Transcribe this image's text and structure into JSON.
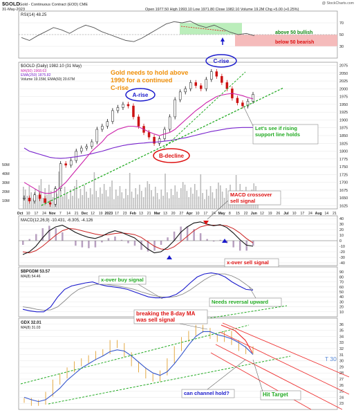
{
  "header": {
    "symbol": "$GOLD",
    "name": "Gold - Continuous Contract (EOD) CME",
    "date": "31-May-2023",
    "ohlc": "Open 1977.50  High 1993.10  Low 1971.80  Close 1982.10  Volume 19.2M  Chg +5.00 (+0.25%)",
    "watermark": "@ StockCharts.com"
  },
  "colors": {
    "price": "#111111",
    "ma50": "#cc22aa",
    "ema250": "#7722cc",
    "volume": "#bbbbbb",
    "trend": "#22aa22",
    "channel": "#ee3333",
    "callout_orange": "#f0900a",
    "callout_red": "#dd1111",
    "callout_green": "#22aa22",
    "callout_blue": "#1a1acc",
    "rsi_line": "#555555",
    "rsi_bull": "#b4ecb4",
    "rsi_bear": "#f4b4b4"
  },
  "chart_data": [
    {
      "type": "line",
      "title": "RSI(14) 48.25",
      "ylim": [
        10,
        90
      ],
      "ticks": [
        "70",
        "50",
        "30"
      ],
      "zones": [
        {
          "label": "above 50 bullish",
          "from": 50,
          "to": 70
        },
        {
          "label": "below 50 bearish",
          "from": 30,
          "to": 50
        }
      ],
      "series": [
        {
          "name": "RSI(14)",
          "values": [
            45,
            40,
            48,
            55,
            62,
            58,
            52,
            60,
            66,
            62,
            55,
            50,
            45,
            40,
            38,
            44,
            52,
            60,
            68,
            72,
            70,
            73,
            66,
            62,
            66,
            60,
            54,
            50,
            52,
            48
          ]
        }
      ]
    },
    {
      "type": "line",
      "title": "$GOLD (Daily) 1982.10 (31 May)",
      "legend": [
        "MA(50) 1968.63",
        "EMA(250) 1875.82",
        "Volume 19.15M, EMA(60) 20.67M"
      ],
      "ylim": [
        1615,
        2085
      ],
      "ticks": [
        "2075",
        "2050",
        "2025",
        "2000",
        "1975",
        "1950",
        "1925",
        "1900",
        "1875",
        "1850",
        "1825",
        "1800",
        "1775",
        "1750",
        "1725",
        "1700",
        "1675",
        "1650",
        "1625"
      ],
      "volume_ticks": [
        "50M",
        "40M",
        "30M",
        "20M",
        "10M"
      ],
      "x_ticks": [
        "Oct",
        "10",
        "17",
        "24",
        "Nov",
        "7",
        "14",
        "21",
        "Dec",
        "12",
        "19",
        "2023",
        "17",
        "23",
        "Feb",
        "13",
        "21",
        "Mar",
        "13",
        "20",
        "27",
        "Apr",
        "10",
        "17",
        "24",
        "May",
        "8",
        "15",
        "22",
        "Jun",
        "12",
        "19",
        "26",
        "Jul",
        "10",
        "17",
        "24",
        "Aug",
        "14",
        "21"
      ],
      "series": [
        {
          "name": "Gold",
          "values": [
            1650,
            1640,
            1660,
            1648,
            1635,
            1630,
            1680,
            1760,
            1755,
            1770,
            1800,
            1810,
            1815,
            1830,
            1870,
            1880,
            1895,
            1930,
            1940,
            1950,
            1945,
            1910,
            1880,
            1860,
            1845,
            1825,
            1840,
            1870,
            1910,
            1965,
            1990,
            2000,
            2020,
            2010,
            2000,
            2030,
            2055,
            2040,
            2020,
            2000,
            1970,
            1955,
            1945,
            1960,
            1982
          ]
        },
        {
          "name": "MA(50)",
          "values": [
            1700,
            1690,
            1680,
            1670,
            1665,
            1665,
            1670,
            1685,
            1700,
            1720,
            1740,
            1760,
            1780,
            1800,
            1815,
            1830,
            1850,
            1860,
            1870,
            1875,
            1880,
            1880,
            1878,
            1870,
            1862,
            1855,
            1850,
            1855,
            1860,
            1870,
            1885,
            1900,
            1915,
            1930,
            1942,
            1955,
            1965,
            1975,
            1980,
            1983,
            1985,
            1982,
            1978,
            1972,
            1968
          ]
        },
        {
          "name": "EMA(250)",
          "values": [
            1810,
            1800,
            1795,
            1790,
            1785,
            1780,
            1778,
            1777,
            1778,
            1780,
            1782,
            1785,
            1788,
            1792,
            1796,
            1800,
            1805,
            1810,
            1814,
            1818,
            1821,
            1823,
            1825,
            1826,
            1828,
            1829,
            1830,
            1832,
            1834,
            1837,
            1840,
            1843,
            1847,
            1851,
            1855,
            1859,
            1863,
            1866,
            1869,
            1872,
            1874,
            1875,
            1876,
            1876,
            1876
          ]
        }
      ],
      "annotations": [
        "Gold needs to hold above 1990 for a continued C-rise",
        "A-rise",
        "C-rise",
        "B-decline",
        "Let's see if rising support line holds"
      ]
    },
    {
      "type": "line",
      "title": "MACD(12,26,9) -10.431, -6.305, -4.126",
      "ylim": [
        -45,
        45
      ],
      "ticks": [
        "40",
        "30",
        "20",
        "10",
        "0",
        "-10",
        "-20",
        "-30",
        "-40"
      ],
      "series": [
        {
          "name": "MACD",
          "values": [
            -25,
            -20,
            -10,
            5,
            18,
            25,
            28,
            22,
            15,
            10,
            6,
            4,
            8,
            14,
            18,
            15,
            10,
            5,
            -5,
            -15,
            -22,
            -20,
            -12,
            0,
            15,
            25,
            32,
            34,
            30,
            27,
            29,
            24,
            14,
            2,
            -8,
            -10
          ]
        },
        {
          "name": "Signal",
          "values": [
            -20,
            -22,
            -18,
            -10,
            0,
            10,
            18,
            22,
            21,
            18,
            15,
            12,
            10,
            11,
            13,
            14,
            13,
            11,
            6,
            -2,
            -10,
            -15,
            -16,
            -11,
            -2,
            8,
            18,
            25,
            28,
            28,
            28,
            27,
            22,
            14,
            4,
            -4
          ]
        }
      ],
      "annotations": [
        "MACD crossover sell signal",
        "x-over sell signal"
      ]
    },
    {
      "type": "line",
      "title": "$BPGDM 53.57",
      "legend": [
        "MA(8) 54.46"
      ],
      "ylim": [
        0,
        100
      ],
      "ticks": [
        "90",
        "80",
        "70",
        "60",
        "50",
        "40",
        "30",
        "20",
        "10"
      ],
      "series": [
        {
          "name": "$BPGDM",
          "values": [
            15,
            12,
            10,
            10,
            20,
            40,
            55,
            62,
            65,
            68,
            70,
            65,
            62,
            60,
            58,
            55,
            50,
            45,
            40,
            38,
            38,
            40,
            45,
            55,
            68,
            80,
            86,
            88,
            86,
            80,
            70,
            62,
            55,
            53.57
          ]
        },
        {
          "name": "MA(8)",
          "values": [
            20,
            18,
            15,
            13,
            14,
            20,
            32,
            45,
            55,
            60,
            64,
            66,
            65,
            63,
            61,
            58,
            55,
            50,
            46,
            42,
            40,
            39,
            41,
            46,
            54,
            64,
            74,
            82,
            86,
            86,
            82,
            75,
            65,
            54.46
          ]
        }
      ],
      "annotations": [
        "x-over buy signal",
        "Needs reversal upward"
      ]
    },
    {
      "type": "line",
      "title": "GDX 32.01",
      "legend": [
        "MA(8) 31.03"
      ],
      "ylim": [
        22,
        37
      ],
      "ticks": [
        "36",
        "35",
        "34",
        "33",
        "32",
        "31",
        "30",
        "29",
        "28",
        "27",
        "26",
        "25",
        "24",
        "23"
      ],
      "series": [
        {
          "name": "GDX",
          "values": [
            23.5,
            23.0,
            23.2,
            24.5,
            26.5,
            27.5,
            28.5,
            29.5,
            30.0,
            30.5,
            31.2,
            31.5,
            33.0,
            32.5,
            31.0,
            29.5,
            28.5,
            27.5,
            27.0,
            28.0,
            30.0,
            32.0,
            33.5,
            34.5,
            35.5,
            35.0,
            34.0,
            33.5,
            34.5,
            33.0,
            32.0,
            31.5,
            32.0
          ]
        },
        {
          "name": "MA(8)",
          "values": [
            24.0,
            23.6,
            23.3,
            23.6,
            24.5,
            25.5,
            26.8,
            27.8,
            28.8,
            29.5,
            30.2,
            30.8,
            31.5,
            31.8,
            31.6,
            30.8,
            29.8,
            28.8,
            28.0,
            27.6,
            28.2,
            29.5,
            31.0,
            32.6,
            34.0,
            34.8,
            34.8,
            34.3,
            34.0,
            33.6,
            33.0,
            32.2,
            31.03
          ]
        }
      ],
      "annotations": [
        "breaking the 8-day MA was sell signal",
        "can channel hold?",
        "Hit Target",
        "T 30"
      ]
    }
  ]
}
